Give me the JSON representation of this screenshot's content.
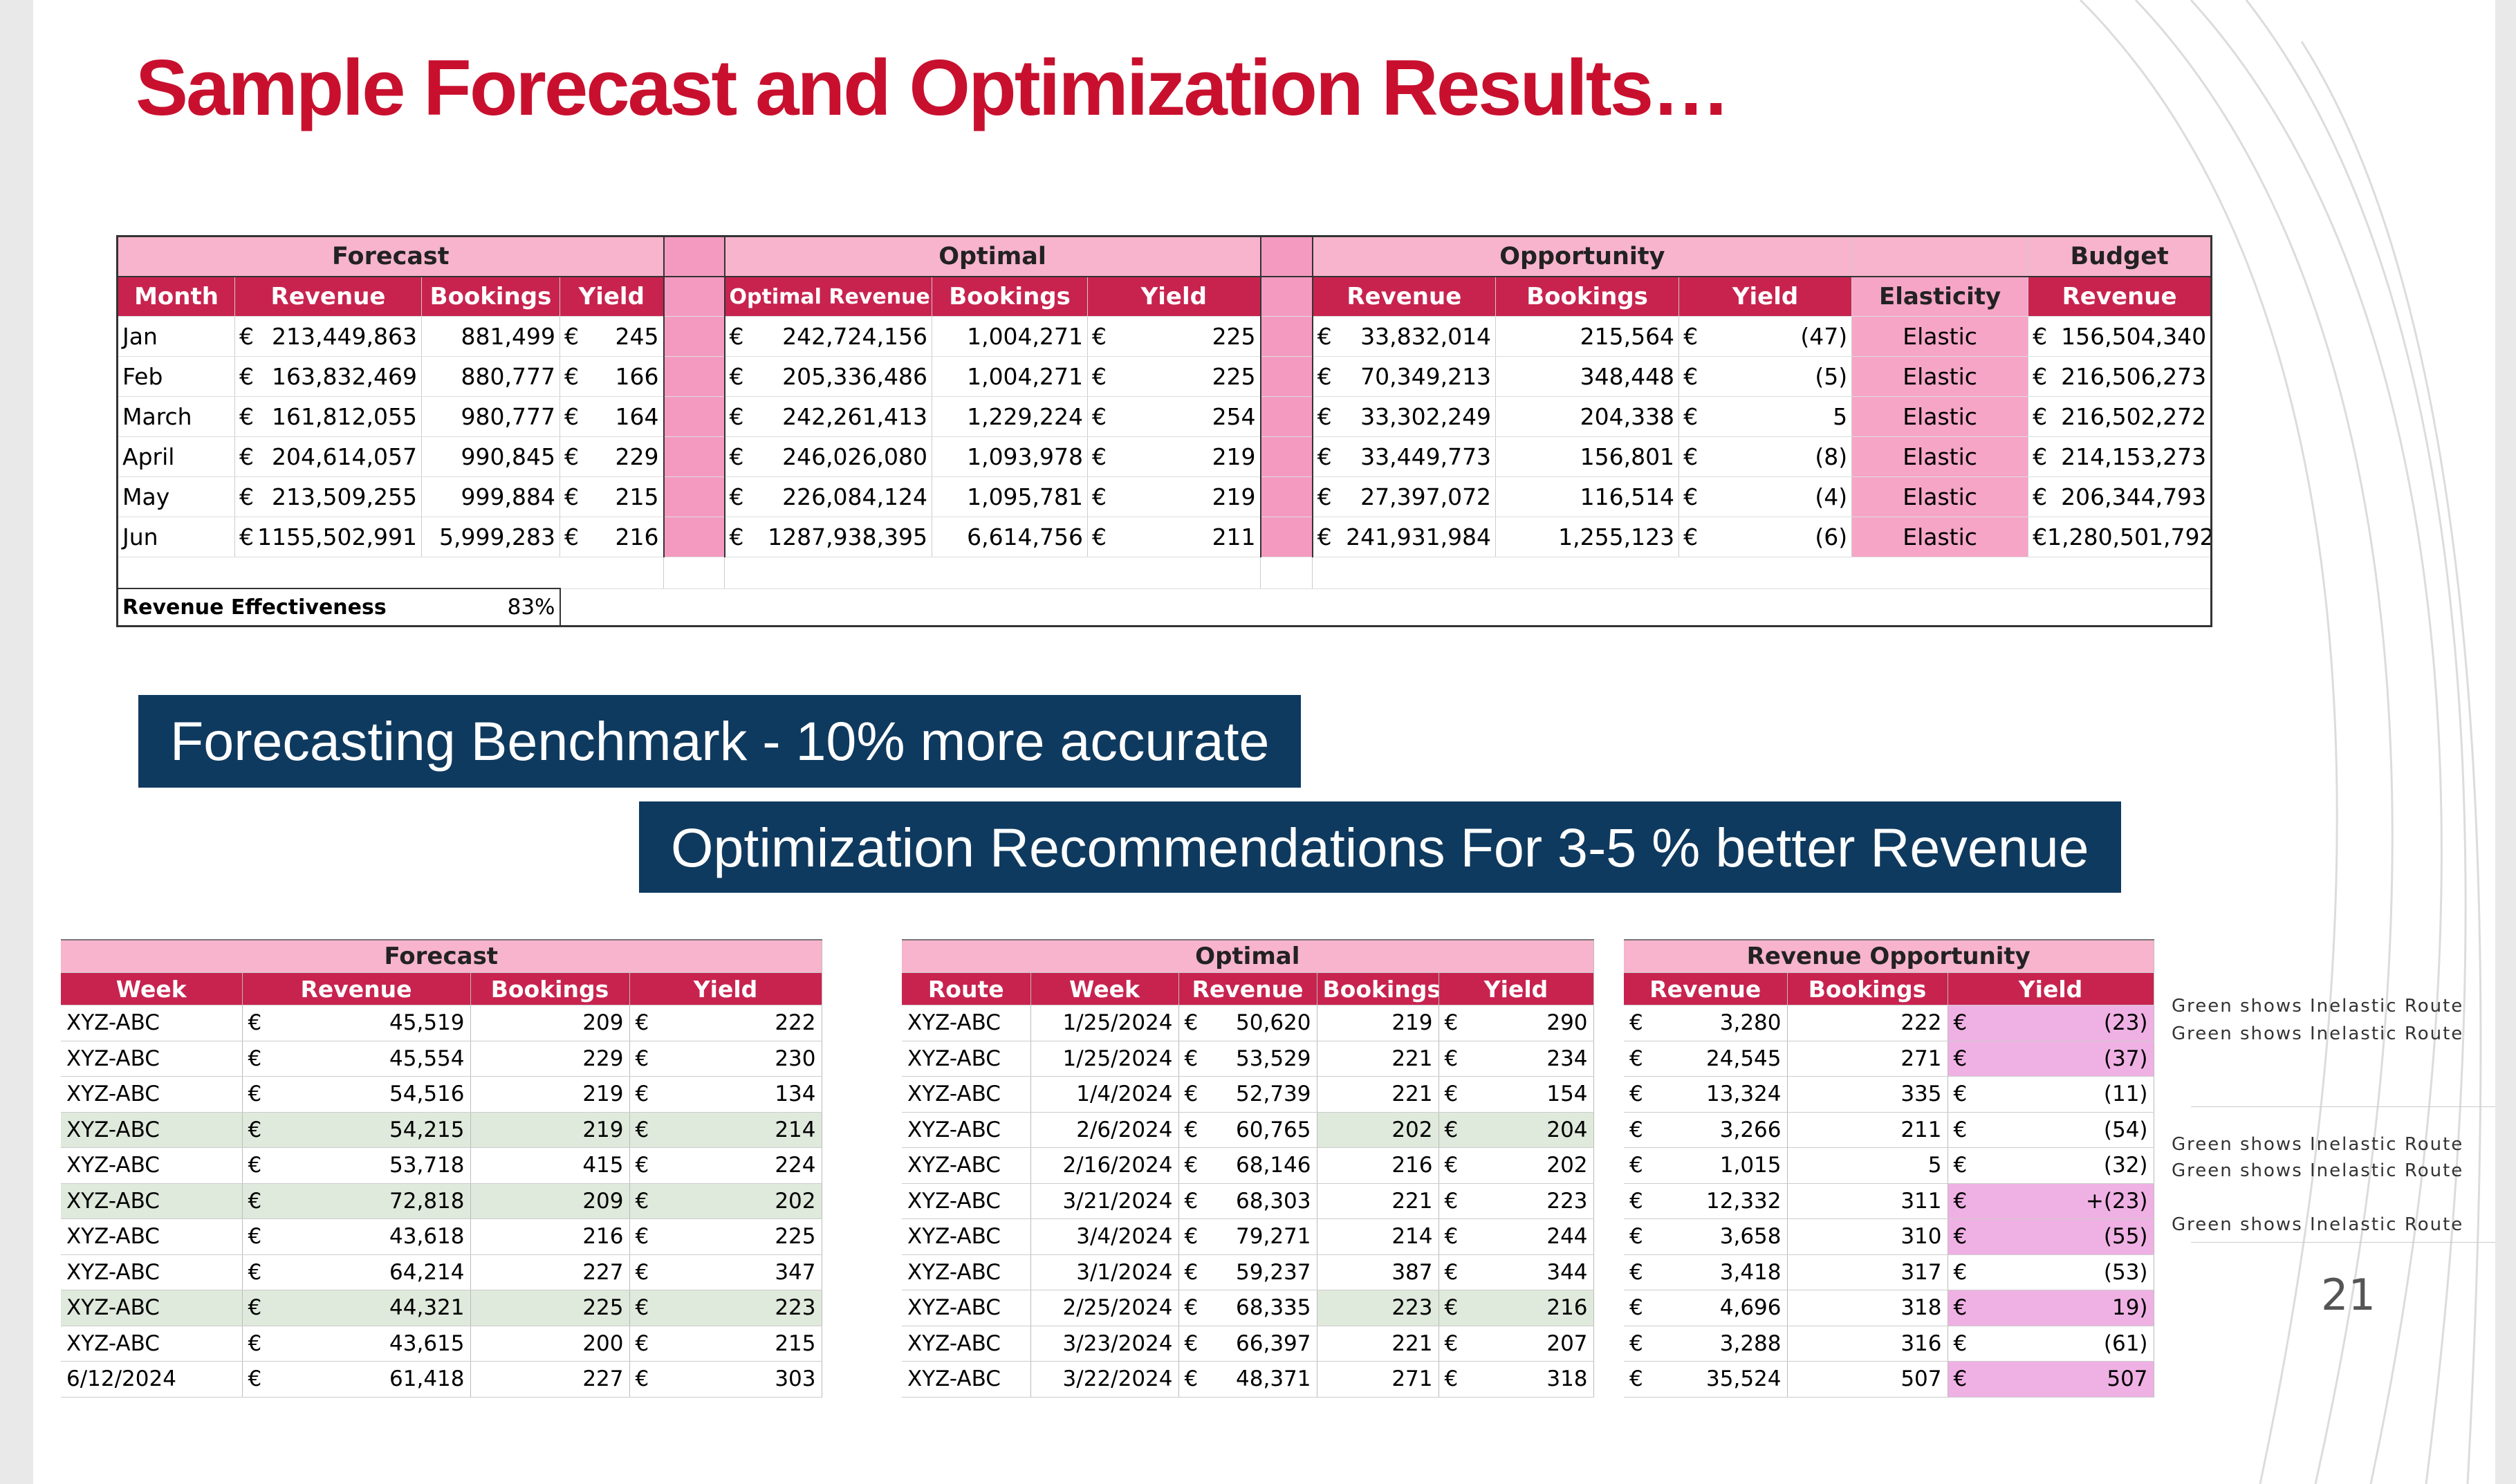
{
  "title": "Sample Forecast and Optimization Results…",
  "banners": {
    "b1": "Forecasting Benchmark - 10% more accurate",
    "b2": "Optimization Recommendations For 3-5 % better Revenue"
  },
  "page_number": "21",
  "colors": {
    "title": "#c8102e",
    "banner_bg": "#0f3a5f",
    "header_bg": "#c8234f",
    "group_bg": "#f7b4cc",
    "elastic_bg": "#f6a5c6",
    "inelastic_row": "#dfe9dc",
    "highlight": "#efb1e4"
  },
  "monthly": {
    "groups": {
      "forecast": "Forecast",
      "optimal": "Optimal",
      "opportunity": "Opportunity",
      "budget": "Budget"
    },
    "headers": {
      "month": "Month",
      "f_rev": "Revenue",
      "f_book": "Bookings",
      "f_yield": "Yield",
      "o_rev": "Optimal Revenue",
      "o_book": "Bookings",
      "o_yield": "Yield",
      "p_rev": "Revenue",
      "p_book": "Bookings",
      "p_yield": "Yield",
      "elasticity": "Elasticity",
      "b_rev": "Revenue"
    },
    "currency": "€",
    "rows": [
      {
        "month": "Jan",
        "f_rev": "213,449,863",
        "f_book": "881,499",
        "f_yield": "245",
        "o_rev": "242,724,156",
        "o_book": "1,004,271",
        "o_yield": "225",
        "p_rev": "33,832,014",
        "p_book": "215,564",
        "p_yield": "(47)",
        "elasticity": "Elastic",
        "b_rev": "156,504,340"
      },
      {
        "month": "Feb",
        "f_rev": "163,832,469",
        "f_book": "880,777",
        "f_yield": "166",
        "o_rev": "205,336,486",
        "o_book": "1,004,271",
        "o_yield": "225",
        "p_rev": "70,349,213",
        "p_book": "348,448",
        "p_yield": "(5)",
        "elasticity": "Elastic",
        "b_rev": "216,506,273"
      },
      {
        "month": "March",
        "f_rev": "161,812,055",
        "f_book": "980,777",
        "f_yield": "164",
        "o_rev": "242,261,413",
        "o_book": "1,229,224",
        "o_yield": "254",
        "p_rev": "33,302,249",
        "p_book": "204,338",
        "p_yield": "5",
        "elasticity": "Elastic",
        "b_rev": "216,502,272"
      },
      {
        "month": "April",
        "f_rev": "204,614,057",
        "f_book": "990,845",
        "f_yield": "229",
        "o_rev": "246,026,080",
        "o_book": "1,093,978",
        "o_yield": "219",
        "p_rev": "33,449,773",
        "p_book": "156,801",
        "p_yield": "(8)",
        "elasticity": "Elastic",
        "b_rev": "214,153,273"
      },
      {
        "month": "May",
        "f_rev": "213,509,255",
        "f_book": "999,884",
        "f_yield": "215",
        "o_rev": "226,084,124",
        "o_book": "1,095,781",
        "o_yield": "219",
        "p_rev": "27,397,072",
        "p_book": "116,514",
        "p_yield": "(4)",
        "elasticity": "Elastic",
        "b_rev": "206,344,793"
      },
      {
        "month": "Jun",
        "f_rev": "1155,502,991",
        "f_book": "5,999,283",
        "f_yield": "216",
        "o_rev": "1287,938,395",
        "o_book": "6,614,756",
        "o_yield": "211",
        "p_rev": "241,931,984",
        "p_book": "1,255,123",
        "p_yield": "(6)",
        "elasticity": "Elastic",
        "b_rev": "1,280,501,792"
      }
    ],
    "effectiveness": {
      "label": "Revenue Effectiveness",
      "value": "83%"
    }
  },
  "weekly_forecast": {
    "group": "Forecast",
    "headers": {
      "week": "Week",
      "revenue": "Revenue",
      "bookings": "Bookings",
      "yield": "Yield"
    },
    "rows": [
      {
        "week": "XYZ-ABC",
        "revenue": "45,519",
        "bookings": "209",
        "yield": "222"
      },
      {
        "week": "XYZ-ABC",
        "revenue": "45,554",
        "bookings": "229",
        "yield": "230"
      },
      {
        "week": "XYZ-ABC",
        "revenue": "54,516",
        "bookings": "219",
        "yield": "134"
      },
      {
        "week": "XYZ-ABC",
        "revenue": "54,215",
        "bookings": "219",
        "yield": "214"
      },
      {
        "week": "XYZ-ABC",
        "revenue": "53,718",
        "bookings": "415",
        "yield": "224"
      },
      {
        "week": "XYZ-ABC",
        "revenue": "72,818",
        "bookings": "209",
        "yield": "202"
      },
      {
        "week": "XYZ-ABC",
        "revenue": "43,618",
        "bookings": "216",
        "yield": "225"
      },
      {
        "week": "XYZ-ABC",
        "revenue": "64,214",
        "bookings": "227",
        "yield": "347"
      },
      {
        "week": "XYZ-ABC",
        "revenue": "44,321",
        "bookings": "225",
        "yield": "223"
      },
      {
        "week": "XYZ-ABC",
        "revenue": "43,615",
        "bookings": "200",
        "yield": "215"
      },
      {
        "week": "6/12/2024",
        "revenue": "61,418",
        "bookings": "227",
        "yield": "303"
      }
    ]
  },
  "weekly_optimal": {
    "group": "Optimal",
    "headers": {
      "route": "Route",
      "week": "Week",
      "revenue": "Revenue",
      "bookings": "Bookings",
      "yield": "Yield"
    },
    "rows": [
      {
        "route": "XYZ-ABC",
        "week": "1/25/2024",
        "revenue": "50,620",
        "bookings": "219",
        "yield": "290"
      },
      {
        "route": "XYZ-ABC",
        "week": "1/25/2024",
        "revenue": "53,529",
        "bookings": "221",
        "yield": "234"
      },
      {
        "route": "XYZ-ABC",
        "week": "1/4/2024",
        "revenue": "52,739",
        "bookings": "221",
        "yield": "154"
      },
      {
        "route": "XYZ-ABC",
        "week": "2/6/2024",
        "revenue": "60,765",
        "bookings": "202",
        "yield": "204"
      },
      {
        "route": "XYZ-ABC",
        "week": "2/16/2024",
        "revenue": "68,146",
        "bookings": "216",
        "yield": "202"
      },
      {
        "route": "XYZ-ABC",
        "week": "3/21/2024",
        "revenue": "68,303",
        "bookings": "221",
        "yield": "223"
      },
      {
        "route": "XYZ-ABC",
        "week": "3/4/2024",
        "revenue": "79,271",
        "bookings": "214",
        "yield": "244"
      },
      {
        "route": "XYZ-ABC",
        "week": "3/1/2024",
        "revenue": "59,237",
        "bookings": "387",
        "yield": "344"
      },
      {
        "route": "XYZ-ABC",
        "week": "2/25/2024",
        "revenue": "68,335",
        "bookings": "223",
        "yield": "216"
      },
      {
        "route": "XYZ-ABC",
        "week": "3/23/2024",
        "revenue": "66,397",
        "bookings": "221",
        "yield": "207"
      },
      {
        "route": "XYZ-ABC",
        "week": "3/22/2024",
        "revenue": "48,371",
        "bookings": "271",
        "yield": "318"
      }
    ]
  },
  "weekly_opportunity": {
    "group": "Revenue Opportunity",
    "headers": {
      "revenue": "Revenue",
      "bookings": "Bookings",
      "yield": "Yield"
    },
    "rows": [
      {
        "revenue": "3,280",
        "bookings": "222",
        "yield": "(23)"
      },
      {
        "revenue": "24,545",
        "bookings": "271",
        "yield": "(37)"
      },
      {
        "revenue": "13,324",
        "bookings": "335",
        "yield": "(11)"
      },
      {
        "revenue": "3,266",
        "bookings": "211",
        "yield": "(54)"
      },
      {
        "revenue": "1,015",
        "bookings": "5",
        "yield": "(32)"
      },
      {
        "revenue": "12,332",
        "bookings": "311",
        "yield": "+(23)"
      },
      {
        "revenue": "3,658",
        "bookings": "310",
        "yield": "(55)"
      },
      {
        "revenue": "3,418",
        "bookings": "317",
        "yield": "(53)"
      },
      {
        "revenue": "4,696",
        "bookings": "318",
        "yield": "19)"
      },
      {
        "revenue": "3,288",
        "bookings": "316",
        "yield": "(61)"
      },
      {
        "revenue": "35,524",
        "bookings": "507",
        "yield": "507"
      }
    ]
  },
  "notes": {
    "n1": "Green shows Inelastic Route",
    "n2": "Green shows Inelastic Route",
    "n3": "Green shows Inelastic Route",
    "n4": "Green shows Inelastic Route",
    "n5": "Green shows Inelastic Route"
  }
}
